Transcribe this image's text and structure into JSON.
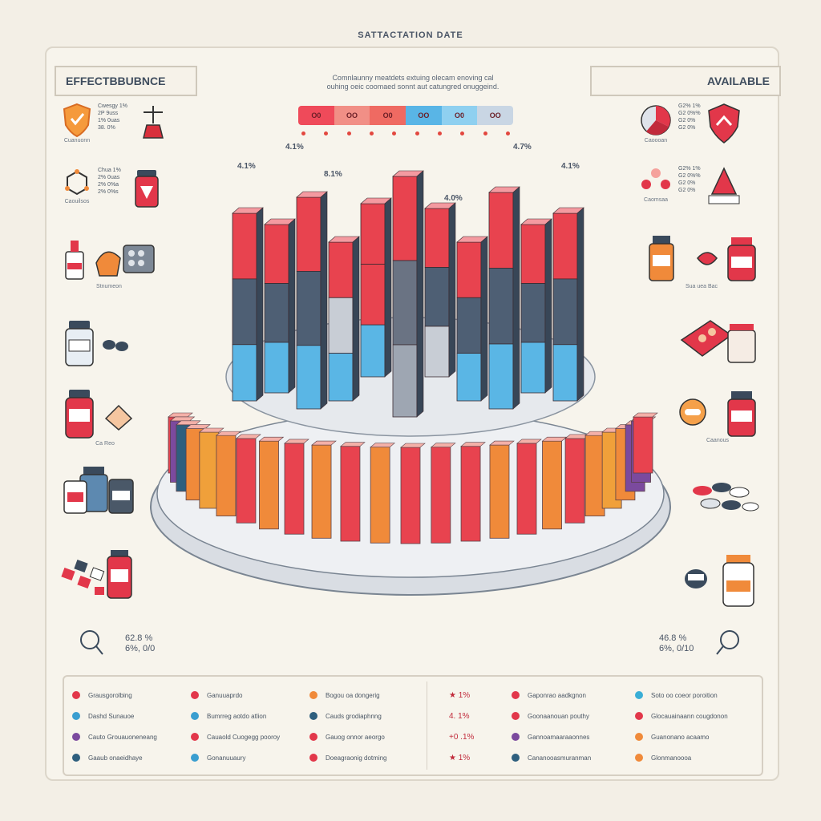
{
  "header": {
    "title": "SATTACTATION DATE",
    "subtitle_line1": "Comnlaunny meatdets extuing olecam enoving cal",
    "subtitle_line2": "ouhing oeic coomaed sonnt aut catungred onuggeind."
  },
  "panels": {
    "left_title": "EFFECTBBUBNCE",
    "right_title": "AVAILABLE"
  },
  "scale": {
    "segments": [
      {
        "label": "O0",
        "color": "#ef4a5a"
      },
      {
        "label": "OO",
        "color": "#f18f86"
      },
      {
        "label": "O0",
        "color": "#ef6a62"
      },
      {
        "label": "OO",
        "color": "#59b5e6"
      },
      {
        "label": "O0",
        "color": "#8fd0f0"
      },
      {
        "label": "OO",
        "color": "#c9d6e4"
      }
    ]
  },
  "top_labels": {
    "a": "4.1%",
    "b": "4.1%",
    "c": "8.1%",
    "d": "4.7%",
    "e": "4.0%",
    "f": "4.1%"
  },
  "left_items": [
    {
      "caption": "Cuanuonn",
      "text": "Cwesgy 1%\n2P 9uss\n1% 0uas\n38. 0%"
    },
    {
      "caption": "Caouilsos",
      "text": "Chua 1%\n2% 0uas\n2% 0%a\n2% 0%s"
    },
    {
      "caption": "Stnumeon",
      "text": ""
    },
    {
      "caption": "Ca Reo",
      "text": ""
    }
  ],
  "right_items": [
    {
      "caption": "Caoooan",
      "text": "G2% 1%\nG2 0%%\nG2 0%\nG2 0%"
    },
    {
      "caption": "Caomsaa",
      "text": "G2% 1%\nG2 0%%\nG2 0%\nG2 0%"
    },
    {
      "caption": "Sua uea Bac",
      "text": ""
    },
    {
      "caption": "Caanous",
      "text": ""
    }
  ],
  "stats": {
    "left": "62.8 %\n6%, 0/0",
    "right": "46.8 %\n6%, 0/10"
  },
  "legend": {
    "col1": [
      {
        "label": "Grausgorolbing",
        "color": "#e2374a"
      },
      {
        "label": "Dashd Sunauoe",
        "color": "#3a9ed0"
      },
      {
        "label": "Cauto Grouauoneneang",
        "color": "#7b4a9e"
      },
      {
        "label": "Gaaub onaeidhaye",
        "color": "#2e5f7e"
      }
    ],
    "col2": [
      {
        "label": "Ganuuaprdo",
        "color": "#e2374a"
      },
      {
        "label": "Bumrreg aotdo atlion",
        "color": "#3a9ed0"
      },
      {
        "label": "Cauaold Cuogegg pooroy",
        "color": "#e2374a"
      },
      {
        "label": "Gonanuuaury",
        "color": "#3a9ed0"
      }
    ],
    "col3": [
      {
        "label": "Bogou oa dongerig",
        "color": "#f08a3a"
      },
      {
        "label": "Cauds grodiaphnng",
        "color": "#2e5f7e"
      },
      {
        "label": "Gauog onnor aeorgo",
        "color": "#e2374a"
      },
      {
        "label": "Doeagraonig dotming",
        "color": "#e2374a"
      }
    ],
    "col4": [
      {
        "label": "★ 1%",
        "color": "#e2374a"
      },
      {
        "label": "4. 1%",
        "color": "#e2374a"
      },
      {
        "label": "+0 .1%",
        "color": "#e2374a"
      },
      {
        "label": "★ 1%",
        "color": "#e2374a"
      }
    ],
    "col5": [
      {
        "label": "Gaponrao aadkgnon",
        "color": "#e2374a"
      },
      {
        "label": "Goonaanouan pouthy",
        "color": "#e2374a"
      },
      {
        "label": "Gannoamaaraaonnes",
        "color": "#7b4a9e"
      },
      {
        "label": "Cananooasmuranman",
        "color": "#2e5f7e"
      }
    ],
    "col6": [
      {
        "label": "Soto oo coeor poroition",
        "color": "#3aaed6"
      },
      {
        "label": "Glocauainaann cougdonon",
        "color": "#e2374a"
      },
      {
        "label": "Guanonano acaamo",
        "color": "#f08a3a"
      },
      {
        "label": "Glonmanoooa",
        "color": "#f08a3a"
      }
    ]
  },
  "chart": {
    "center_bars": [
      {
        "h": 0.78,
        "top": "#e8434f",
        "mid": "#4e5f74",
        "low": "#5ab6e5"
      },
      {
        "h": 0.7,
        "top": "#e8434f",
        "mid": "#4e5f74",
        "low": "#5ab6e5"
      },
      {
        "h": 0.88,
        "top": "#e8434f",
        "mid": "#4e5f74",
        "low": "#5ab6e5"
      },
      {
        "h": 0.66,
        "top": "#e8434f",
        "mid": "#c8cdd5",
        "low": "#5ab6e5"
      },
      {
        "h": 0.72,
        "top": "#e8434f",
        "mid": "#e8434f",
        "low": "#5ab6e5"
      },
      {
        "h": 1.0,
        "top": "#e8434f",
        "mid": "#6a7383",
        "low": "#9ea6b2"
      },
      {
        "h": 0.7,
        "top": "#e8434f",
        "mid": "#4e5f74",
        "low": "#c8cdd5"
      },
      {
        "h": 0.66,
        "top": "#e8434f",
        "mid": "#4e5f74",
        "low": "#5ab6e5"
      },
      {
        "h": 0.9,
        "top": "#e8434f",
        "mid": "#4e5f74",
        "low": "#5ab6e5"
      },
      {
        "h": 0.7,
        "top": "#e8434f",
        "mid": "#4e5f74",
        "low": "#5ab6e5"
      },
      {
        "h": 0.78,
        "top": "#e8434f",
        "mid": "#4e5f74",
        "low": "#5ab6e5"
      }
    ],
    "ring_bars": [
      {
        "color": "#e8434f"
      },
      {
        "color": "#7b4a9e"
      },
      {
        "color": "#2e5f7e"
      },
      {
        "color": "#f08a3a"
      },
      {
        "color": "#f0a03a"
      },
      {
        "color": "#f08a3a"
      },
      {
        "color": "#e8434f"
      },
      {
        "color": "#f08a3a"
      },
      {
        "color": "#e8434f"
      },
      {
        "color": "#f08a3a"
      },
      {
        "color": "#e8434f"
      },
      {
        "color": "#f08a3a"
      },
      {
        "color": "#e8434f"
      },
      {
        "color": "#e8434f"
      },
      {
        "color": "#e8434f"
      },
      {
        "color": "#f08a3a"
      },
      {
        "color": "#e8434f"
      },
      {
        "color": "#f08a3a"
      },
      {
        "color": "#e8434f"
      },
      {
        "color": "#f08a3a"
      },
      {
        "color": "#f0a03a"
      },
      {
        "color": "#f08a3a"
      },
      {
        "color": "#7b4a9e"
      },
      {
        "color": "#7b4a9e"
      },
      {
        "color": "#e8434f"
      }
    ]
  }
}
